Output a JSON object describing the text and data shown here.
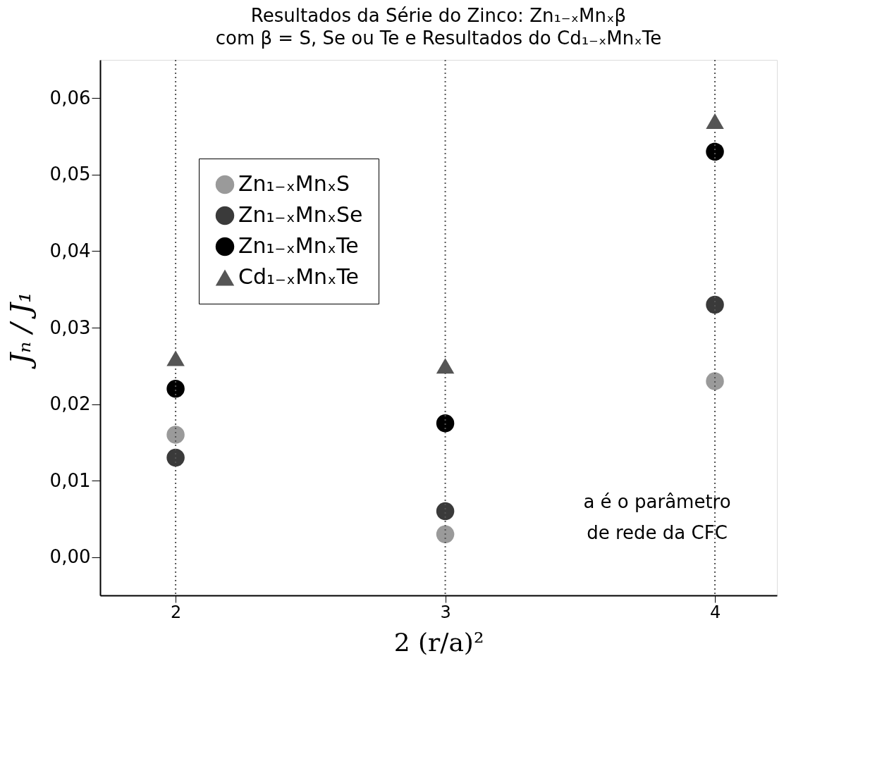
{
  "chart_data": {
    "type": "scatter",
    "title": "Resultados da Série do Zinco: Zn₁₋ₓMnₓβ",
    "subtitle": "com β = S, Se ou Te e Resultados do Cd₁₋ₓMnₓTe",
    "xlabel": "2 (r/a)²",
    "ylabel": "Jₙ / J₁",
    "x": [
      2,
      3,
      4
    ],
    "series": [
      {
        "name": "Zn₁₋ₓMnₓS",
        "color": "#9a9a9a",
        "marker": "circle",
        "values": [
          0.016,
          0.003,
          0.023
        ]
      },
      {
        "name": "Zn₁₋ₓMnₓSe",
        "color": "#3a3a3a",
        "marker": "circle",
        "values": [
          0.013,
          0.006,
          0.033
        ]
      },
      {
        "name": "Zn₁₋ₓMnₓTe",
        "color": "#000000",
        "marker": "circle",
        "values": [
          0.022,
          0.0175,
          0.053
        ]
      },
      {
        "name": "Cd₁₋ₓMnₓTe",
        "color": "#555555",
        "marker": "triangle",
        "values": [
          0.026,
          0.025,
          0.057
        ]
      }
    ],
    "xlim": [
      1.72,
      4.23
    ],
    "xticks": [
      2,
      3,
      4
    ],
    "ylim": [
      -0.005,
      0.065
    ],
    "yticks": [
      {
        "value": 0,
        "label": "0,00"
      },
      {
        "value": 0.01,
        "label": "0,01"
      },
      {
        "value": 0.02,
        "label": "0,02"
      },
      {
        "value": 0.03,
        "label": "0,03"
      },
      {
        "value": 0.04,
        "label": "0,04"
      },
      {
        "value": 0.05,
        "label": "0,05"
      },
      {
        "value": 0.06,
        "label": "0,06"
      }
    ],
    "ref_lines": [
      {
        "axis": "x",
        "value": 2,
        "color": "#555555",
        "line_style": "dotted"
      },
      {
        "axis": "x",
        "value": 3,
        "color": "#555555",
        "line_style": "dotted"
      },
      {
        "axis": "x",
        "value": 4,
        "color": "#555555",
        "line_style": "dotted"
      }
    ],
    "annotations": [
      "a é o parâmetro de rede da CFC"
    ],
    "legend": "top left",
    "grid": false
  }
}
